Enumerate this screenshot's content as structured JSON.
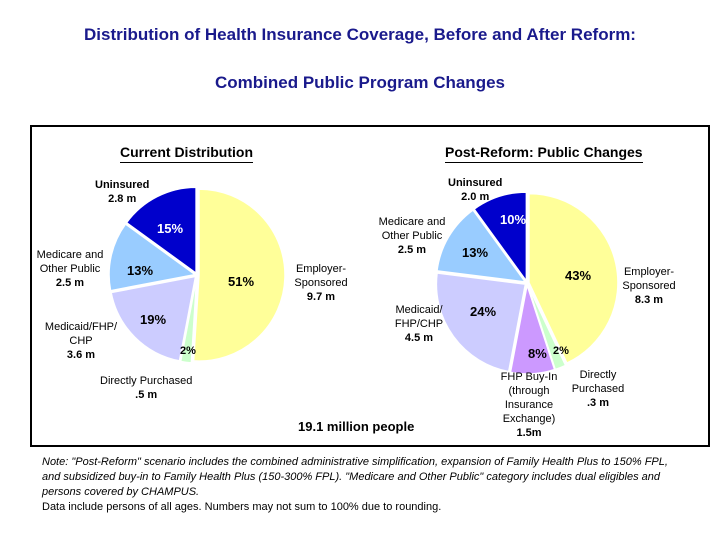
{
  "title": "Distribution of Health Insurance Coverage, Before and After Reform:",
  "subtitle": "Combined Public Program Changes",
  "total": "19.1 million people",
  "note": "Note: \"Post-Reform\" scenario includes the combined administrative simplification, expansion of Family Health Plus to 150% FPL, and subsidized buy-in to Family Health Plus (150-300% FPL). \"Medicare and Other Public\" category includes dual eligibles and persons covered by CHAMPUS.",
  "note2": "Data include persons of all ages. Numbers may not sum to 100% due to rounding.",
  "chart_data": [
    {
      "type": "pie",
      "title": "Current Distribution",
      "slices": [
        {
          "label": "Employer-Sponsored",
          "amount": "9.7 m",
          "value": 51,
          "pct": "51%",
          "color": "#ffff99"
        },
        {
          "label": "Directly Purchased",
          "amount": ".5 m",
          "value": 2,
          "pct": "2%",
          "color": "#ccffcc"
        },
        {
          "label": "Medicaid/FHP/ CHP",
          "amount": "3.6 m",
          "value": 19,
          "pct": "19%",
          "color": "#ccccff"
        },
        {
          "label": "Medicare and Other Public",
          "amount": "2.5 m",
          "value": 13,
          "pct": "13%",
          "color": "#99ccff"
        },
        {
          "label": "Uninsured",
          "amount": "2.8 m",
          "value": 15,
          "pct": "15%",
          "color": "#0000cc"
        }
      ]
    },
    {
      "type": "pie",
      "title": "Post-Reform: Public Changes",
      "slices": [
        {
          "label": "Employer-Sponsored",
          "amount": "8.3 m",
          "value": 43,
          "pct": "43%",
          "color": "#ffff99"
        },
        {
          "label": "Directly Purchased",
          "amount": ".3 m",
          "value": 2,
          "pct": "2%",
          "color": "#ccffcc"
        },
        {
          "label": "FHP Buy-In (through Insurance Exchange)",
          "amount": "1.5m",
          "value": 8,
          "pct": "8%",
          "color": "#cc99ff"
        },
        {
          "label": "Medicaid/ FHP/CHP",
          "amount": "4.5 m",
          "value": 24,
          "pct": "24%",
          "color": "#ccccff"
        },
        {
          "label": "Medicare and Other Public",
          "amount": "2.5 m",
          "value": 13,
          "pct": "13%",
          "color": "#99ccff"
        },
        {
          "label": "Uninsured",
          "amount": "2.0 m",
          "value": 10,
          "pct": "10%",
          "color": "#0000cc"
        }
      ]
    }
  ]
}
